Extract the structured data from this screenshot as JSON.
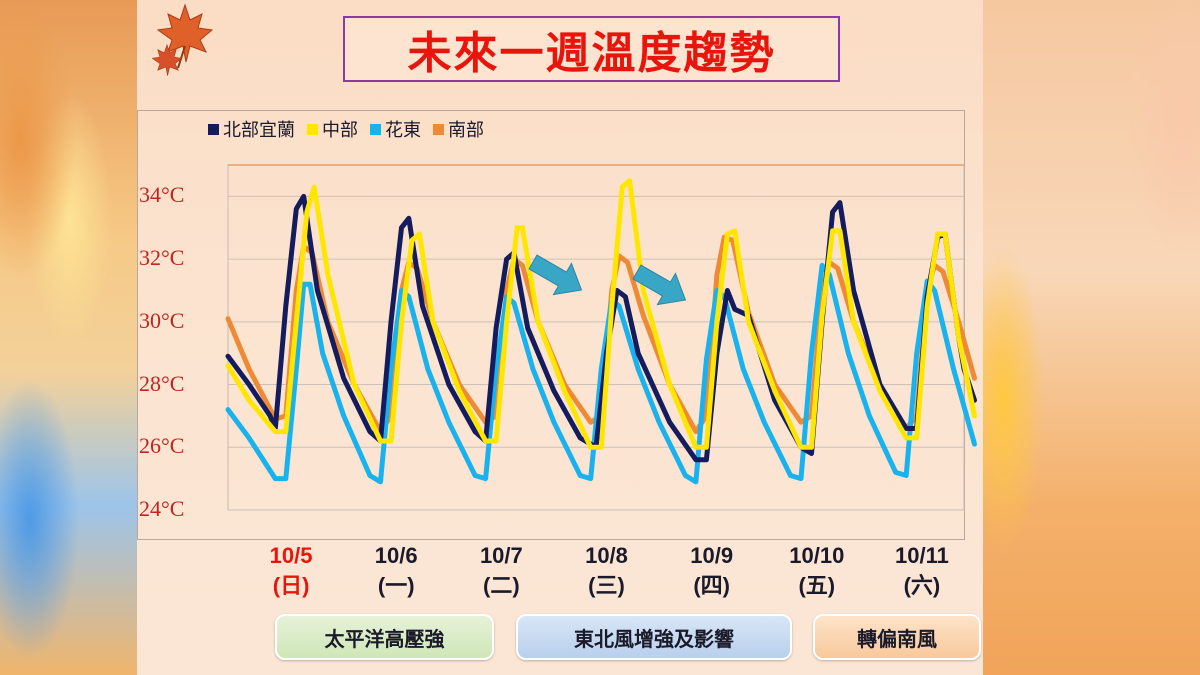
{
  "title": "未來一週溫度趨勢",
  "colors": {
    "north": "#141c5e",
    "central": "#ffe600",
    "east": "#18b2ee",
    "south": "#ee8a35",
    "title_red": "#e8150c",
    "arrow": "#3aa6c6"
  },
  "icons": [
    "maple-leaf-icon",
    "arrow-icon"
  ],
  "legend": [
    {
      "key": "north",
      "label": "北部宜蘭"
    },
    {
      "key": "central",
      "label": "中部"
    },
    {
      "key": "east",
      "label": "花東"
    },
    {
      "key": "south",
      "label": "南部"
    }
  ],
  "x_categories": [
    {
      "date": "10/5",
      "day": "(日)",
      "highlight": true
    },
    {
      "date": "10/6",
      "day": "(一)",
      "highlight": false
    },
    {
      "date": "10/7",
      "day": "(二)",
      "highlight": false
    },
    {
      "date": "10/8",
      "day": "(三)",
      "highlight": false
    },
    {
      "date": "10/9",
      "day": "(四)",
      "highlight": false
    },
    {
      "date": "10/10",
      "day": "(五)",
      "highlight": false
    },
    {
      "date": "10/11",
      "day": "(六)",
      "highlight": false
    }
  ],
  "weather_notes": [
    {
      "label": "太平洋高壓強",
      "style": "green"
    },
    {
      "label": "東北風增強及影響",
      "style": "blue"
    },
    {
      "label": "轉偏南風",
      "style": "orange"
    }
  ],
  "chart_data": {
    "type": "line",
    "title": "未來一週溫度趨勢",
    "xlabel": "",
    "ylabel": "",
    "ylim": [
      24,
      35
    ],
    "yticks": [
      24,
      26,
      28,
      30,
      32,
      34
    ],
    "ytick_labels": [
      "24°C",
      "26°C",
      "28°C",
      "30°C",
      "32°C",
      "34°C"
    ],
    "x_unit": "day (0 = start of 10/5 timeline)",
    "x_range": [
      0,
      7
    ],
    "grid": true,
    "legend_position": "top-left",
    "series": [
      {
        "name": "北部宜蘭",
        "key": "north",
        "points": [
          [
            0.0,
            28.9
          ],
          [
            0.2,
            28.0
          ],
          [
            0.4,
            27.0
          ],
          [
            0.45,
            26.6
          ],
          [
            0.55,
            30.5
          ],
          [
            0.65,
            33.6
          ],
          [
            0.72,
            34.0
          ],
          [
            0.85,
            31.0
          ],
          [
            1.1,
            28.2
          ],
          [
            1.35,
            26.5
          ],
          [
            1.45,
            26.2
          ],
          [
            1.55,
            30.0
          ],
          [
            1.65,
            33.0
          ],
          [
            1.72,
            33.3
          ],
          [
            1.85,
            30.5
          ],
          [
            2.1,
            28.0
          ],
          [
            2.35,
            26.5
          ],
          [
            2.45,
            26.2
          ],
          [
            2.55,
            29.8
          ],
          [
            2.65,
            32.0
          ],
          [
            2.72,
            32.2
          ],
          [
            2.85,
            29.8
          ],
          [
            3.1,
            27.8
          ],
          [
            3.35,
            26.3
          ],
          [
            3.5,
            26.0
          ],
          [
            3.6,
            29.0
          ],
          [
            3.7,
            31.0
          ],
          [
            3.78,
            30.8
          ],
          [
            3.9,
            29.0
          ],
          [
            4.2,
            26.8
          ],
          [
            4.45,
            25.6
          ],
          [
            4.55,
            25.6
          ],
          [
            4.65,
            29.0
          ],
          [
            4.75,
            31.0
          ],
          [
            4.82,
            30.4
          ],
          [
            4.95,
            30.2
          ],
          [
            5.2,
            27.5
          ],
          [
            5.45,
            26.0
          ],
          [
            5.55,
            25.8
          ],
          [
            5.65,
            30.0
          ],
          [
            5.75,
            33.5
          ],
          [
            5.82,
            33.8
          ],
          [
            5.95,
            31.0
          ],
          [
            6.2,
            28.0
          ],
          [
            6.45,
            26.6
          ],
          [
            6.55,
            26.6
          ],
          [
            6.65,
            30.8
          ],
          [
            6.75,
            32.7
          ],
          [
            6.82,
            32.8
          ],
          [
            6.95,
            29.5
          ],
          [
            7.0,
            28.5
          ],
          [
            7.1,
            27.5
          ]
        ]
      },
      {
        "name": "中部",
        "key": "central",
        "points": [
          [
            0.0,
            28.6
          ],
          [
            0.2,
            27.5
          ],
          [
            0.45,
            26.5
          ],
          [
            0.55,
            26.5
          ],
          [
            0.65,
            30.0
          ],
          [
            0.75,
            33.5
          ],
          [
            0.82,
            34.3
          ],
          [
            0.95,
            31.5
          ],
          [
            1.2,
            28.0
          ],
          [
            1.45,
            26.2
          ],
          [
            1.55,
            26.2
          ],
          [
            1.65,
            30.0
          ],
          [
            1.75,
            32.6
          ],
          [
            1.82,
            32.8
          ],
          [
            1.95,
            30.0
          ],
          [
            2.2,
            27.8
          ],
          [
            2.45,
            26.2
          ],
          [
            2.55,
            26.2
          ],
          [
            2.65,
            30.0
          ],
          [
            2.75,
            33.0
          ],
          [
            2.8,
            33.0
          ],
          [
            2.95,
            30.0
          ],
          [
            3.2,
            27.8
          ],
          [
            3.45,
            26.0
          ],
          [
            3.55,
            26.0
          ],
          [
            3.65,
            30.5
          ],
          [
            3.75,
            34.3
          ],
          [
            3.82,
            34.5
          ],
          [
            3.95,
            31.0
          ],
          [
            4.2,
            28.0
          ],
          [
            4.45,
            26.0
          ],
          [
            4.55,
            26.0
          ],
          [
            4.65,
            30.0
          ],
          [
            4.75,
            32.8
          ],
          [
            4.82,
            32.9
          ],
          [
            4.95,
            30.0
          ],
          [
            5.2,
            27.8
          ],
          [
            5.45,
            26.0
          ],
          [
            5.55,
            26.0
          ],
          [
            5.65,
            30.2
          ],
          [
            5.75,
            32.9
          ],
          [
            5.82,
            32.9
          ],
          [
            5.95,
            30.0
          ],
          [
            6.2,
            27.8
          ],
          [
            6.45,
            26.3
          ],
          [
            6.55,
            26.3
          ],
          [
            6.65,
            30.5
          ],
          [
            6.75,
            32.8
          ],
          [
            6.82,
            32.8
          ],
          [
            6.95,
            29.5
          ],
          [
            7.1,
            27.0
          ]
        ]
      },
      {
        "name": "花東",
        "key": "east",
        "points": [
          [
            0.0,
            27.2
          ],
          [
            0.2,
            26.3
          ],
          [
            0.45,
            25.0
          ],
          [
            0.55,
            25.0
          ],
          [
            0.65,
            28.5
          ],
          [
            0.72,
            31.2
          ],
          [
            0.78,
            31.2
          ],
          [
            0.9,
            29.0
          ],
          [
            1.1,
            27.0
          ],
          [
            1.35,
            25.1
          ],
          [
            1.45,
            24.9
          ],
          [
            1.55,
            28.5
          ],
          [
            1.65,
            31.0
          ],
          [
            1.72,
            30.8
          ],
          [
            1.9,
            28.5
          ],
          [
            2.1,
            26.8
          ],
          [
            2.35,
            25.1
          ],
          [
            2.45,
            25.0
          ],
          [
            2.55,
            28.5
          ],
          [
            2.65,
            30.8
          ],
          [
            2.72,
            30.6
          ],
          [
            2.9,
            28.5
          ],
          [
            3.1,
            26.8
          ],
          [
            3.35,
            25.1
          ],
          [
            3.45,
            25.0
          ],
          [
            3.55,
            28.5
          ],
          [
            3.65,
            30.7
          ],
          [
            3.72,
            30.5
          ],
          [
            3.9,
            28.5
          ],
          [
            4.1,
            26.8
          ],
          [
            4.35,
            25.1
          ],
          [
            4.45,
            24.9
          ],
          [
            4.55,
            28.8
          ],
          [
            4.65,
            31.0
          ],
          [
            4.72,
            30.8
          ],
          [
            4.9,
            28.5
          ],
          [
            5.1,
            26.8
          ],
          [
            5.35,
            25.1
          ],
          [
            5.45,
            25.0
          ],
          [
            5.55,
            29.0
          ],
          [
            5.65,
            31.8
          ],
          [
            5.72,
            31.5
          ],
          [
            5.9,
            29.0
          ],
          [
            6.1,
            27.0
          ],
          [
            6.35,
            25.2
          ],
          [
            6.45,
            25.1
          ],
          [
            6.55,
            29.0
          ],
          [
            6.65,
            31.3
          ],
          [
            6.72,
            31.0
          ],
          [
            6.9,
            28.5
          ],
          [
            7.1,
            26.1
          ]
        ]
      },
      {
        "name": "南部",
        "key": "south",
        "points": [
          [
            0.0,
            30.1
          ],
          [
            0.2,
            28.5
          ],
          [
            0.45,
            26.9
          ],
          [
            0.55,
            27.0
          ],
          [
            0.65,
            31.0
          ],
          [
            0.72,
            32.4
          ],
          [
            0.8,
            32.2
          ],
          [
            0.95,
            30.0
          ],
          [
            1.2,
            28.0
          ],
          [
            1.45,
            26.5
          ],
          [
            1.55,
            27.0
          ],
          [
            1.65,
            31.0
          ],
          [
            1.72,
            31.9
          ],
          [
            1.8,
            31.7
          ],
          [
            1.95,
            30.0
          ],
          [
            2.2,
            28.0
          ],
          [
            2.45,
            26.8
          ],
          [
            2.55,
            27.0
          ],
          [
            2.65,
            31.0
          ],
          [
            2.72,
            32.0
          ],
          [
            2.8,
            31.8
          ],
          [
            2.95,
            30.0
          ],
          [
            3.2,
            28.0
          ],
          [
            3.45,
            26.8
          ],
          [
            3.55,
            27.0
          ],
          [
            3.65,
            31.0
          ],
          [
            3.72,
            32.1
          ],
          [
            3.8,
            31.9
          ],
          [
            3.95,
            30.2
          ],
          [
            4.2,
            28.0
          ],
          [
            4.45,
            26.5
          ],
          [
            4.55,
            27.0
          ],
          [
            4.65,
            31.5
          ],
          [
            4.72,
            32.7
          ],
          [
            4.8,
            32.6
          ],
          [
            4.95,
            30.3
          ],
          [
            5.2,
            28.0
          ],
          [
            5.45,
            26.8
          ],
          [
            5.55,
            27.0
          ],
          [
            5.65,
            31.0
          ],
          [
            5.72,
            31.9
          ],
          [
            5.8,
            31.7
          ],
          [
            5.95,
            30.0
          ],
          [
            6.2,
            28.0
          ],
          [
            6.45,
            26.6
          ],
          [
            6.55,
            27.0
          ],
          [
            6.65,
            31.0
          ],
          [
            6.72,
            31.8
          ],
          [
            6.8,
            31.6
          ],
          [
            6.95,
            30.0
          ],
          [
            7.1,
            28.2
          ]
        ]
      }
    ]
  }
}
